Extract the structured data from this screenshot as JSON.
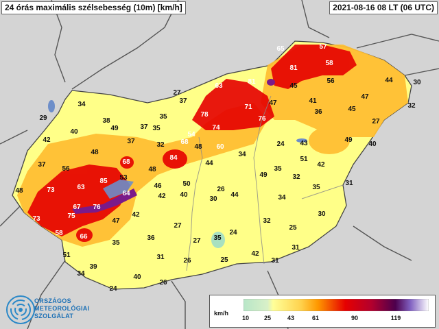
{
  "header": {
    "title": "24 órás maximális szélsebesség (10m) [km/h]",
    "timestamp": "2021-08-16 08 LT (06 UTC)"
  },
  "logo": {
    "line1": "ORSZÁGOS",
    "line2": "METEOROLÓGIAI",
    "line3": "SZOLGÁLAT"
  },
  "legend": {
    "unit": "km/h",
    "ticks": [
      "10",
      "25",
      "43",
      "61",
      "90",
      "119"
    ],
    "colors": [
      "#b8e6c8",
      "#ffff99",
      "#ffa500",
      "#dd0000",
      "#660066",
      "#ffffff"
    ]
  },
  "stations": [
    {
      "v": "65"
    },
    {
      "v": "57"
    },
    {
      "v": "81"
    },
    {
      "v": "58"
    },
    {
      "v": "63"
    },
    {
      "v": "81"
    },
    {
      "v": "45"
    },
    {
      "v": "56"
    },
    {
      "v": "44"
    },
    {
      "v": "30"
    },
    {
      "v": "27"
    },
    {
      "v": "37"
    },
    {
      "v": "47"
    },
    {
      "v": "71"
    },
    {
      "v": "47"
    },
    {
      "v": "41"
    },
    {
      "v": "32"
    },
    {
      "v": "34"
    },
    {
      "v": "78"
    },
    {
      "v": "76"
    },
    {
      "v": "36"
    },
    {
      "v": "45"
    },
    {
      "v": "29"
    },
    {
      "v": "38"
    },
    {
      "v": "35"
    },
    {
      "v": "74"
    },
    {
      "v": "27"
    },
    {
      "v": "40"
    },
    {
      "v": "49"
    },
    {
      "v": "37"
    },
    {
      "v": "35"
    },
    {
      "v": "54"
    },
    {
      "v": "42"
    },
    {
      "v": "37"
    },
    {
      "v": "32"
    },
    {
      "v": "68"
    },
    {
      "v": "48"
    },
    {
      "v": "60"
    },
    {
      "v": "24"
    },
    {
      "v": "43"
    },
    {
      "v": "49"
    },
    {
      "v": "40"
    },
    {
      "v": "48"
    },
    {
      "v": "34"
    },
    {
      "v": "51"
    },
    {
      "v": "37"
    },
    {
      "v": "68"
    },
    {
      "v": "84"
    },
    {
      "v": "44"
    },
    {
      "v": "42"
    },
    {
      "v": "56"
    },
    {
      "v": "48"
    },
    {
      "v": "35"
    },
    {
      "v": "53"
    },
    {
      "v": "49"
    },
    {
      "v": "32"
    },
    {
      "v": "31"
    },
    {
      "v": "73"
    },
    {
      "v": "63"
    },
    {
      "v": "85"
    },
    {
      "v": "50"
    },
    {
      "v": "26"
    },
    {
      "v": "35"
    },
    {
      "v": "46"
    },
    {
      "v": "48"
    },
    {
      "v": "64"
    },
    {
      "v": "42"
    },
    {
      "v": "40"
    },
    {
      "v": "30"
    },
    {
      "v": "44"
    },
    {
      "v": "34"
    },
    {
      "v": "67"
    },
    {
      "v": "76"
    },
    {
      "v": "73"
    },
    {
      "v": "75"
    },
    {
      "v": "47"
    },
    {
      "v": "42"
    },
    {
      "v": "27"
    },
    {
      "v": "32"
    },
    {
      "v": "30"
    },
    {
      "v": "58"
    },
    {
      "v": "66"
    },
    {
      "v": "35"
    },
    {
      "v": "36"
    },
    {
      "v": "25"
    },
    {
      "v": "24"
    },
    {
      "v": "27"
    },
    {
      "v": "35"
    },
    {
      "v": "51"
    },
    {
      "v": "31"
    },
    {
      "v": "26"
    },
    {
      "v": "25"
    },
    {
      "v": "42"
    },
    {
      "v": "31"
    },
    {
      "v": "31"
    },
    {
      "v": "39"
    },
    {
      "v": "34"
    },
    {
      "v": "40"
    },
    {
      "v": "26"
    },
    {
      "v": "24"
    }
  ]
}
